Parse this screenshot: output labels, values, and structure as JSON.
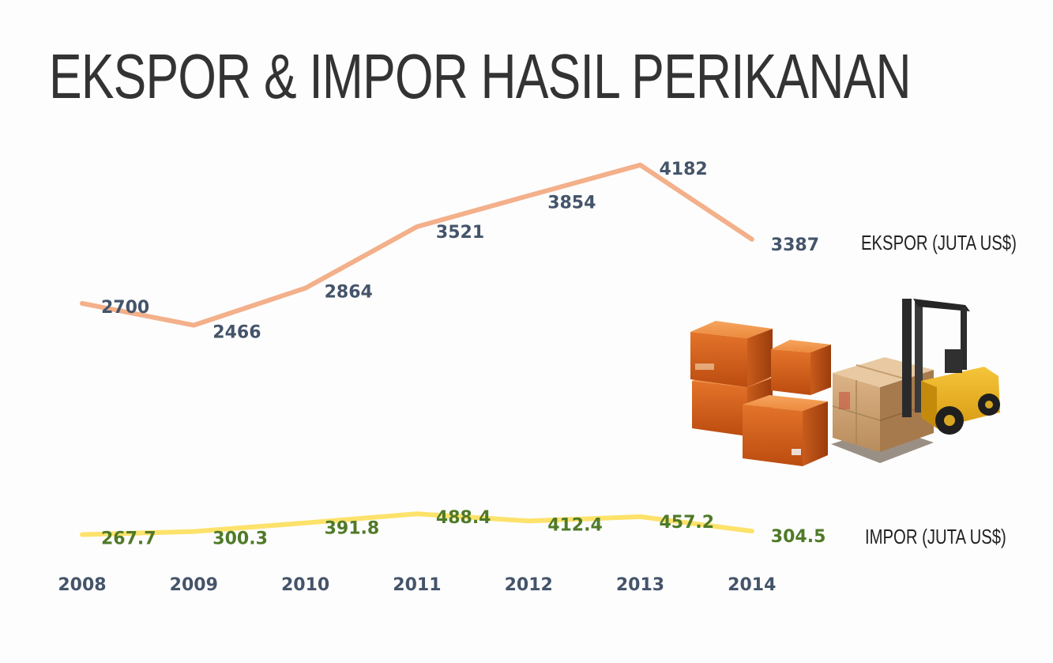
{
  "title": "EKSPOR & IMPOR HASIL PERIKANAN",
  "colors": {
    "ekspor_line": "#f3b08a",
    "impor_line": "#fde26b",
    "ekspor_label": "#44546a",
    "impor_label": "#4f7a28",
    "axis_label": "#44546a",
    "title": "#333333"
  },
  "icons": [
    "cardboard-boxes-icon",
    "forklift-icon"
  ],
  "chart_data": {
    "type": "line",
    "title": "EKSPOR & IMPOR HASIL PERIKANAN",
    "categories": [
      "2008",
      "2009",
      "2010",
      "2011",
      "2012",
      "2013",
      "2014"
    ],
    "series": [
      {
        "name": "EKSPOR (JUTA US$)",
        "values": [
          2700,
          2466,
          2864,
          3521,
          3854,
          4182,
          3387
        ],
        "labels": [
          "2700",
          "2466",
          "2864",
          "3521",
          "3854",
          "4182",
          "3387"
        ]
      },
      {
        "name": "IMPOR (JUTA US$)",
        "values": [
          267.7,
          300.3,
          391.8,
          488.4,
          412.4,
          457.2,
          304.5
        ],
        "labels": [
          "267.7",
          "300.3",
          "391.8",
          "488.4",
          "412.4",
          "457.2",
          "304.5"
        ]
      }
    ],
    "grid": false,
    "legend": "right, next to line ends"
  }
}
